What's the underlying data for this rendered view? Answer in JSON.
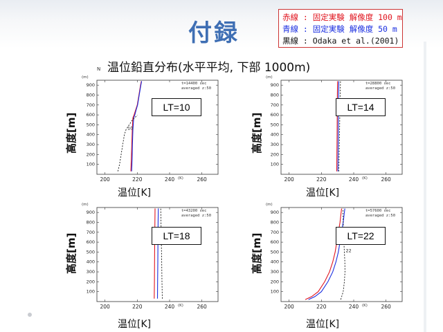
{
  "slide": {
    "title": "付録",
    "subtitle": "温位鉛直分布(水平平均,  下部 1000m)",
    "subtitle_mark": "N"
  },
  "legend": {
    "red": "赤線 : 固定実験 解像度 100 m",
    "blue": "青線 : 固定実験 解像度  50 m",
    "black": "黒線 : Odaka et al.(2001)"
  },
  "colors": {
    "red": "#e0141e",
    "blue": "#1a2ee0",
    "black": "#111111",
    "title": "#3f6fb4"
  },
  "panels": [
    {
      "label": "LT=10",
      "ylabel": "高度[m]",
      "xlabel": "温位[K]",
      "info1": "t=14400 sec",
      "info2": "averaged  z:50"
    },
    {
      "label": "LT=14",
      "ylabel": "高度[m]",
      "xlabel": "温位[K]",
      "info1": "t=28800 sec",
      "info2": "averaged  z:50"
    },
    {
      "label": "LT=18",
      "ylabel": "高度[m]",
      "xlabel": "温位[K]",
      "info1": "t=43200 sec",
      "info2": "averaged  z:50"
    },
    {
      "label": "LT=22",
      "ylabel": "高度[m]",
      "xlabel": "温位[K]",
      "info1": "t=57600 sec",
      "info2": "averaged  z:50"
    }
  ],
  "axis": {
    "y_unit": "(m)",
    "x_unit": "(K)"
  },
  "chart_data": [
    {
      "type": "line",
      "title": "LT=10",
      "xlabel": "温位[K]",
      "ylabel": "高度[m]",
      "xlim": [
        195,
        270
      ],
      "ylim": [
        0,
        950
      ],
      "xticks": [
        200,
        220,
        240,
        260
      ],
      "yticks": [
        100,
        200,
        300,
        400,
        500,
        600,
        700,
        800,
        900
      ],
      "series": [
        {
          "name": "赤線",
          "color": "red",
          "dash": false,
          "points": [
            [
              216,
              30
            ],
            [
              216.3,
              150
            ],
            [
              216.6,
              300
            ],
            [
              216.9,
              450
            ],
            [
              217.3,
              570
            ],
            [
              218,
              600
            ],
            [
              219,
              650
            ],
            [
              220,
              700
            ],
            [
              221,
              800
            ],
            [
              222,
              900
            ],
            [
              222.5,
              940
            ]
          ]
        },
        {
          "name": "青線",
          "color": "blue",
          "dash": false,
          "points": [
            [
              216.5,
              30
            ],
            [
              216.8,
              150
            ],
            [
              217,
              300
            ],
            [
              217.3,
              450
            ],
            [
              217.8,
              570
            ],
            [
              218.5,
              600
            ],
            [
              219.3,
              650
            ],
            [
              220.2,
              700
            ],
            [
              221.2,
              800
            ],
            [
              222.2,
              900
            ],
            [
              222.7,
              940
            ]
          ]
        },
        {
          "name": "黒線",
          "color": "black",
          "dash": true,
          "label": "10",
          "points": [
            [
              208,
              30
            ],
            [
              209,
              100
            ],
            [
              210,
              200
            ],
            [
              211,
              300
            ],
            [
              212,
              400
            ],
            [
              213,
              450
            ],
            [
              215,
              500
            ],
            [
              217,
              550
            ],
            [
              219,
              580
            ],
            [
              220,
              600
            ]
          ]
        }
      ]
    },
    {
      "type": "line",
      "title": "LT=14",
      "xlabel": "温位[K]",
      "ylabel": "高度[m]",
      "xlim": [
        195,
        270
      ],
      "ylim": [
        0,
        950
      ],
      "xticks": [
        200,
        220,
        240,
        260
      ],
      "yticks": [
        100,
        200,
        300,
        400,
        500,
        600,
        700,
        800,
        900
      ],
      "series": [
        {
          "name": "赤線",
          "color": "red",
          "dash": false,
          "points": [
            [
              229.5,
              30
            ],
            [
              229.6,
              200
            ],
            [
              229.7,
              400
            ],
            [
              229.8,
              600
            ],
            [
              229.9,
              800
            ],
            [
              230,
              940
            ]
          ]
        },
        {
          "name": "青線",
          "color": "blue",
          "dash": false,
          "points": [
            [
              230.2,
              30
            ],
            [
              230.3,
              200
            ],
            [
              230.4,
              400
            ],
            [
              230.5,
              600
            ],
            [
              230.6,
              800
            ],
            [
              230.8,
              940
            ]
          ]
        },
        {
          "name": "黒線",
          "color": "black",
          "dash": true,
          "label": "14",
          "points": [
            [
              230.8,
              30
            ],
            [
              231,
              200
            ],
            [
              231.2,
              400
            ],
            [
              231.4,
              600
            ],
            [
              231.6,
              800
            ],
            [
              231.8,
              940
            ]
          ]
        }
      ]
    },
    {
      "type": "line",
      "title": "LT=18",
      "xlabel": "温位[K]",
      "ylabel": "高度[m]",
      "xlim": [
        195,
        270
      ],
      "ylim": [
        0,
        950
      ],
      "xticks": [
        200,
        220,
        240,
        260
      ],
      "yticks": [
        100,
        200,
        300,
        400,
        500,
        600,
        700,
        800,
        900
      ],
      "series": [
        {
          "name": "赤線",
          "color": "red",
          "dash": false,
          "points": [
            [
              230.5,
              30
            ],
            [
              230.6,
              200
            ],
            [
              230.7,
              400
            ],
            [
              230.8,
              600
            ],
            [
              230.9,
              800
            ],
            [
              231,
              940
            ]
          ]
        },
        {
          "name": "青線",
          "color": "blue",
          "dash": false,
          "points": [
            [
              232.5,
              30
            ],
            [
              232.6,
              200
            ],
            [
              232.7,
              400
            ],
            [
              232.8,
              600
            ],
            [
              232.9,
              800
            ],
            [
              233,
              940
            ]
          ]
        },
        {
          "name": "黒線",
          "color": "black",
          "dash": true,
          "label": "18",
          "points": [
            [
              235.5,
              30
            ],
            [
              235.3,
              200
            ],
            [
              235.1,
              400
            ],
            [
              234.9,
              600
            ],
            [
              234.7,
              800
            ],
            [
              234.5,
              940
            ]
          ]
        }
      ]
    },
    {
      "type": "line",
      "title": "LT=22",
      "xlabel": "温位[K]",
      "ylabel": "高度[m]",
      "xlim": [
        195,
        270
      ],
      "ylim": [
        0,
        950
      ],
      "xticks": [
        200,
        220,
        240,
        260
      ],
      "yticks": [
        100,
        200,
        300,
        400,
        500,
        600,
        700,
        800,
        900
      ],
      "series": [
        {
          "name": "赤線",
          "color": "red",
          "dash": false,
          "points": [
            [
              210,
              20
            ],
            [
              214,
              50
            ],
            [
              218,
              100
            ],
            [
              222,
              200
            ],
            [
              225,
              300
            ],
            [
              227,
              400
            ],
            [
              228.5,
              500
            ],
            [
              229.5,
              600
            ],
            [
              230.5,
              700
            ],
            [
              231.5,
              800
            ],
            [
              232.5,
              940
            ]
          ]
        },
        {
          "name": "青線",
          "color": "blue",
          "dash": false,
          "points": [
            [
              212,
              20
            ],
            [
              216,
              50
            ],
            [
              220,
              100
            ],
            [
              224,
              200
            ],
            [
              227,
              300
            ],
            [
              229,
              400
            ],
            [
              230.5,
              500
            ],
            [
              231.5,
              600
            ],
            [
              232.5,
              700
            ],
            [
              233.5,
              800
            ],
            [
              234.5,
              940
            ]
          ]
        },
        {
          "name": "黒線",
          "color": "black",
          "dash": true,
          "label": "22",
          "points": [
            [
              232,
              20
            ],
            [
              233.5,
              100
            ],
            [
              234.2,
              200
            ],
            [
              234.6,
              300
            ],
            [
              234.5,
              400
            ],
            [
              234.2,
              500
            ],
            [
              233.9,
              600
            ],
            [
              233.7,
              700
            ],
            [
              233.5,
              800
            ],
            [
              233.3,
              940
            ]
          ]
        }
      ]
    }
  ]
}
